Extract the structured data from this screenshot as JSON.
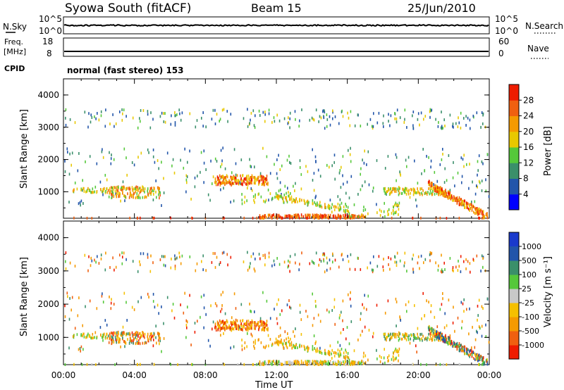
{
  "header": {
    "station": "Syowa South (fitACF)",
    "beam": "Beam 15",
    "date": "25/Jun/2010"
  },
  "noise_panel": {
    "left_label": "N.Sky",
    "right_label": "N.Search",
    "tick_top": "10^5",
    "tick_bottom": "10^0"
  },
  "freq_panel": {
    "left_label_1": "Freq.",
    "left_label_2": "[MHz]",
    "right_label": "Nave",
    "left_tick_top": "18",
    "left_tick_bottom": "8",
    "right_tick_top": "60",
    "right_tick_bottom": "0"
  },
  "cpid": {
    "label": "CPID",
    "value": "normal (fast stereo) 153"
  },
  "colors": {
    "power_scale": [
      "#0000ff",
      "#2255aa",
      "#3a8f6a",
      "#55c83a",
      "#e8c800",
      "#f59a00",
      "#f06010",
      "#ee1c00"
    ],
    "velocity_scale": [
      "#ee1c00",
      "#f06010",
      "#f59a00",
      "#f5c000",
      "#c8c8c8",
      "#55c83a",
      "#3a8f6a",
      "#2255aa"
    ]
  },
  "chart_data": [
    {
      "type": "heatmap",
      "panel": "power",
      "ylabel": "Slant Range [km]",
      "yticks": [
        "1000",
        "2000",
        "3000",
        "4000"
      ],
      "ylim": [
        180,
        4500
      ],
      "xlim": [
        "00:00",
        "24:00"
      ],
      "colorbar_label": "Power [dB]",
      "colorbar_ticks": [
        "4",
        "8",
        "12",
        "16",
        "20",
        "24",
        "28"
      ],
      "colorbar_range": [
        0,
        32
      ]
    },
    {
      "type": "heatmap",
      "panel": "velocity",
      "ylabel": "Slant Range [km]",
      "yticks": [
        "1000",
        "2000",
        "3000",
        "4000"
      ],
      "ylim": [
        180,
        4500
      ],
      "xlim": [
        "00:00",
        "24:00"
      ],
      "xticks": [
        "00:00",
        "04:00",
        "08:00",
        "12:00",
        "16:00",
        "20:00",
        "00:00"
      ],
      "xlabel": "Time UT",
      "colorbar_label": "Velocity [m s⁻¹]",
      "colorbar_ticks": [
        "1000",
        "500",
        "100",
        "25",
        "-25",
        "-100",
        "-500",
        "-1000"
      ]
    }
  ]
}
